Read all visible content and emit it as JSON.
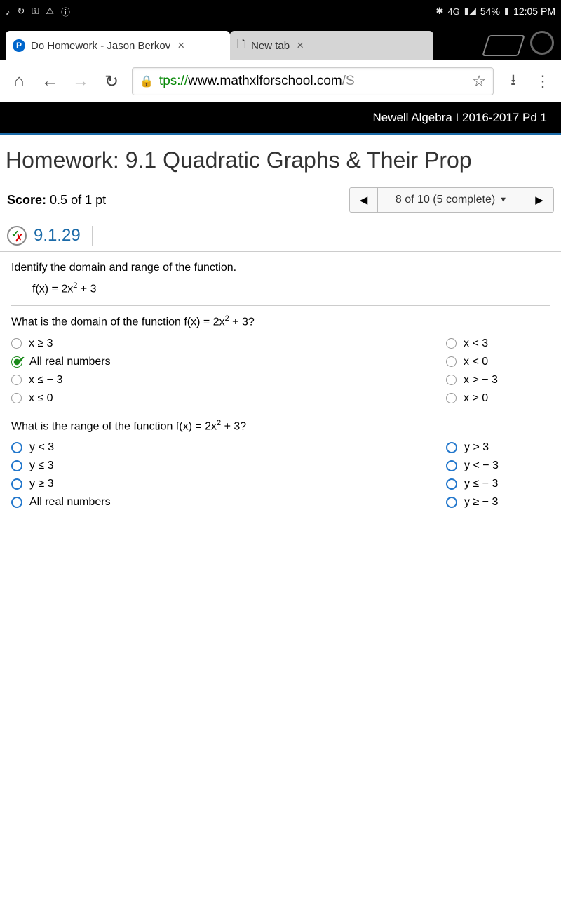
{
  "statusbar": {
    "battery": "54%",
    "time": "12:05 PM",
    "network": "4G"
  },
  "tabs": {
    "t1": {
      "title": "Do Homework - Jason Berkov"
    },
    "t2": {
      "title": "New tab"
    }
  },
  "url": {
    "protocol": "tps://",
    "host": "www.mathxlforschool.com",
    "path": "/S"
  },
  "classHeader": "Newell Algebra I 2016-2017 Pd 1",
  "hwTitle": "Homework: 9.1 Quadratic Graphs & Their Prop",
  "score": {
    "label": "Score:",
    "value": "0.5 of 1 pt"
  },
  "nav": {
    "position": "8 of 10 (5 complete)"
  },
  "qnum": "9.1.29",
  "problem": {
    "instruction": "Identify the domain and range of the function.",
    "func_pre": "f(x) = 2x",
    "func_exp": "2",
    "func_post": " + 3",
    "q1_pre": "What is the domain of the function f(x) = 2x",
    "q1_exp": "2",
    "q1_post": " + 3?",
    "q1_opts_left": [
      {
        "text": "x ≥ 3",
        "selected": false
      },
      {
        "text": "All real numbers",
        "selected": true
      },
      {
        "text": "x ≤  − 3",
        "selected": false
      },
      {
        "text": "x ≤ 0",
        "selected": false
      }
    ],
    "q1_opts_right": [
      {
        "text": "x < 3"
      },
      {
        "text": "x < 0"
      },
      {
        "text": "x >  − 3"
      },
      {
        "text": "x > 0"
      }
    ],
    "q2_pre": "What is the range of the function f(x) = 2x",
    "q2_exp": "2",
    "q2_post": " + 3?",
    "q2_opts_left": [
      {
        "text": "y < 3"
      },
      {
        "text": "y ≤ 3"
      },
      {
        "text": "y ≥ 3"
      },
      {
        "text": "All real numbers"
      }
    ],
    "q2_opts_right": [
      {
        "text": "y > 3"
      },
      {
        "text": "y <  − 3"
      },
      {
        "text": "y ≤  − 3"
      },
      {
        "text": "y ≥  − 3"
      }
    ]
  }
}
